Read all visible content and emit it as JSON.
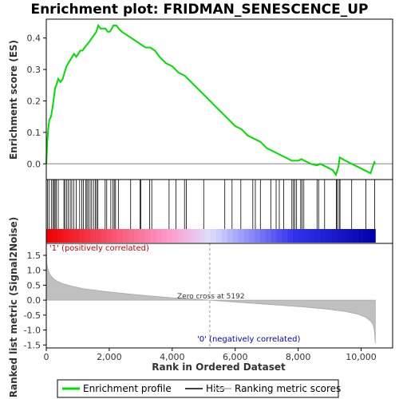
{
  "chart_data": {
    "type": "line",
    "title": "Enrichment plot: FRIDMAN_SENESCENCE_UP",
    "top_panel": {
      "ylabel": "Enrichment score (ES)",
      "ylim": [
        -0.05,
        0.46
      ],
      "yticks": [
        "0.0",
        "0.1",
        "0.2",
        "0.3",
        "0.4"
      ],
      "ytick_values": [
        0.0,
        0.1,
        0.2,
        0.3,
        0.4
      ],
      "series": [
        {
          "name": "Enrichment profile",
          "color": "#00dd00",
          "x": [
            0,
            30,
            60,
            100,
            150,
            200,
            240,
            280,
            320,
            380,
            450,
            520,
            580,
            640,
            700,
            760,
            820,
            880,
            950,
            1020,
            1080,
            1150,
            1220,
            1300,
            1380,
            1450,
            1520,
            1590,
            1650,
            1720,
            1800,
            1880,
            1950,
            2020,
            2080,
            2130,
            2180,
            2230,
            2300,
            2400,
            2550,
            2700,
            2850,
            3000,
            3150,
            3300,
            3450,
            3600,
            3800,
            4000,
            4200,
            4400,
            4600,
            4800,
            5000,
            5200,
            5400,
            5600,
            5800,
            6000,
            6200,
            6400,
            6600,
            6800,
            7000,
            7200,
            7400,
            7600,
            7800,
            8000,
            8100,
            8200,
            8400,
            8600,
            8700,
            8900,
            9100,
            9200,
            9280,
            9320,
            9500,
            9700,
            9900,
            10100,
            10300,
            10400,
            10420,
            10450
          ],
          "y": [
            0.0,
            0.07,
            0.11,
            0.14,
            0.15,
            0.18,
            0.21,
            0.24,
            0.25,
            0.27,
            0.26,
            0.27,
            0.29,
            0.31,
            0.32,
            0.33,
            0.34,
            0.35,
            0.34,
            0.35,
            0.36,
            0.36,
            0.37,
            0.38,
            0.39,
            0.4,
            0.41,
            0.42,
            0.44,
            0.43,
            0.43,
            0.43,
            0.42,
            0.42,
            0.43,
            0.44,
            0.44,
            0.44,
            0.43,
            0.42,
            0.41,
            0.4,
            0.39,
            0.38,
            0.37,
            0.37,
            0.36,
            0.34,
            0.32,
            0.31,
            0.29,
            0.28,
            0.26,
            0.24,
            0.22,
            0.2,
            0.18,
            0.16,
            0.14,
            0.12,
            0.11,
            0.09,
            0.08,
            0.07,
            0.05,
            0.04,
            0.03,
            0.02,
            0.01,
            0.01,
            0.015,
            0.01,
            0.0,
            -0.005,
            0.0,
            -0.01,
            -0.02,
            -0.035,
            -0.01,
            0.02,
            0.01,
            0.0,
            -0.01,
            -0.02,
            -0.03,
            0.0,
            0.005,
            0.0
          ]
        }
      ]
    },
    "hits_panel": {
      "series_name": "Hits",
      "hit_ranks": [
        40,
        90,
        160,
        210,
        250,
        280,
        320,
        380,
        560,
        590,
        650,
        700,
        760,
        810,
        870,
        950,
        1060,
        1130,
        1180,
        1250,
        1290,
        1330,
        1390,
        1440,
        1500,
        1560,
        1600,
        1640,
        1870,
        1920,
        2050,
        2120,
        2160,
        2200,
        2290,
        2680,
        2980,
        3000,
        3280,
        3350,
        3900,
        4120,
        4390,
        4450,
        5000,
        5670,
        5900,
        6180,
        6560,
        6640,
        6800,
        7130,
        7300,
        7400,
        7540,
        7800,
        7850,
        7890,
        7950,
        8080,
        8120,
        8180,
        8600,
        8650,
        8840,
        9210,
        9240,
        9300,
        9330,
        9700,
        10150,
        10430
      ]
    },
    "metric_panel": {
      "ylabel": "Ranked list metric (Signal2Noise)",
      "xlabel": "Rank in Ordered Dataset",
      "ylim": [
        -1.6,
        1.9
      ],
      "yticks": [
        "1.5",
        "1.0",
        "0.5",
        "0.0",
        "-0.5",
        "-1.0",
        "-1.5"
      ],
      "ytick_values": [
        1.5,
        1.0,
        0.5,
        0.0,
        -0.5,
        -1.0,
        -1.5
      ],
      "xlim": [
        0,
        11000
      ],
      "xticks": [
        "0",
        "2,000",
        "4,000",
        "6,000",
        "8,000",
        "10,000"
      ],
      "xtick_values": [
        0,
        2000,
        4000,
        6000,
        8000,
        10000
      ],
      "series_name": "Ranking metric scores",
      "x": [
        0,
        20,
        60,
        120,
        200,
        300,
        500,
        800,
        1200,
        1800,
        2500,
        3200,
        4000,
        4800,
        5192,
        5800,
        6600,
        7400,
        8200,
        9000,
        9500,
        9900,
        10150,
        10300,
        10380,
        10420,
        10450
      ],
      "y": [
        1.75,
        1.2,
        1.0,
        0.85,
        0.75,
        0.66,
        0.56,
        0.47,
        0.38,
        0.3,
        0.22,
        0.15,
        0.08,
        0.03,
        0.0,
        -0.05,
        -0.11,
        -0.17,
        -0.23,
        -0.31,
        -0.38,
        -0.47,
        -0.58,
        -0.7,
        -0.82,
        -1.0,
        -1.45
      ],
      "zero_cross_label": "Zero cross at 5192",
      "zero_cross_rank": 5192,
      "positive_label": "'1' (positively correlated)",
      "negative_label": "'0' (negatively correlated)"
    },
    "colors": {
      "profile": "#00dd00",
      "hit_line": "#000000",
      "metric_fill": "#c0c0c0",
      "positive_label": "#cc0000",
      "negative_label": "#0000cc",
      "heatmap": [
        "#ee0000",
        "#ff99cc",
        "#ddddff",
        "#3333ee",
        "#0000aa"
      ]
    },
    "legend": {
      "items": [
        {
          "label": "Enrichment profile",
          "color": "#00dd00"
        },
        {
          "label": "Hits",
          "color": "#000000"
        },
        {
          "label": "Ranking metric scores",
          "color": "#c0c0c0"
        }
      ]
    }
  }
}
